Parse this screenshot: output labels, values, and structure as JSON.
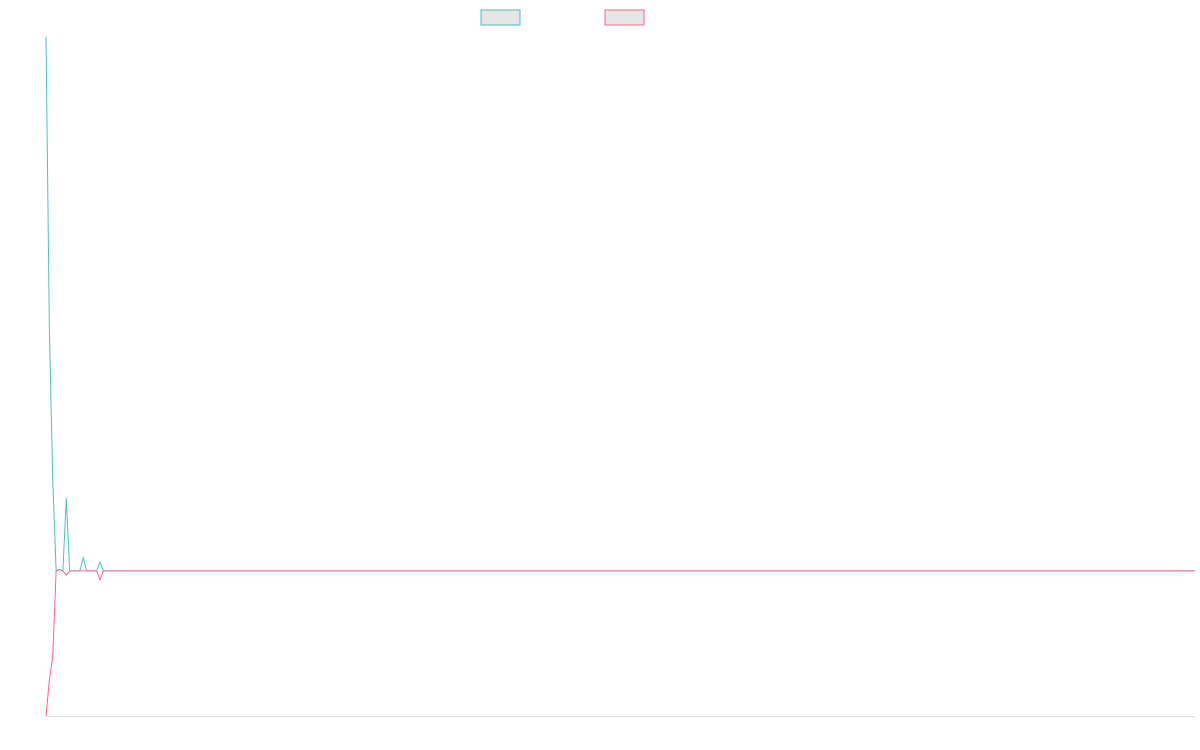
{
  "chart_data": {
    "type": "line",
    "x": [
      0,
      1,
      2,
      3,
      4,
      5,
      6,
      7,
      10,
      11,
      12,
      15,
      16,
      17,
      340
    ],
    "xlim": [
      0,
      340
    ],
    "ylim": [
      -1,
      3.68
    ],
    "series": [
      {
        "color": "#4bc0c0",
        "values": [
          3.68,
          1.66,
          0.62,
          0,
          0.01,
          0,
          0.5,
          0,
          0,
          0.09,
          0,
          0,
          0.06,
          0,
          0
        ]
      },
      {
        "color": "#ff6384",
        "values": [
          -1,
          -0.75,
          -0.59,
          0,
          0.01,
          0,
          -0.03,
          0,
          0,
          0,
          0,
          0,
          -0.06,
          0,
          0
        ]
      }
    ]
  }
}
